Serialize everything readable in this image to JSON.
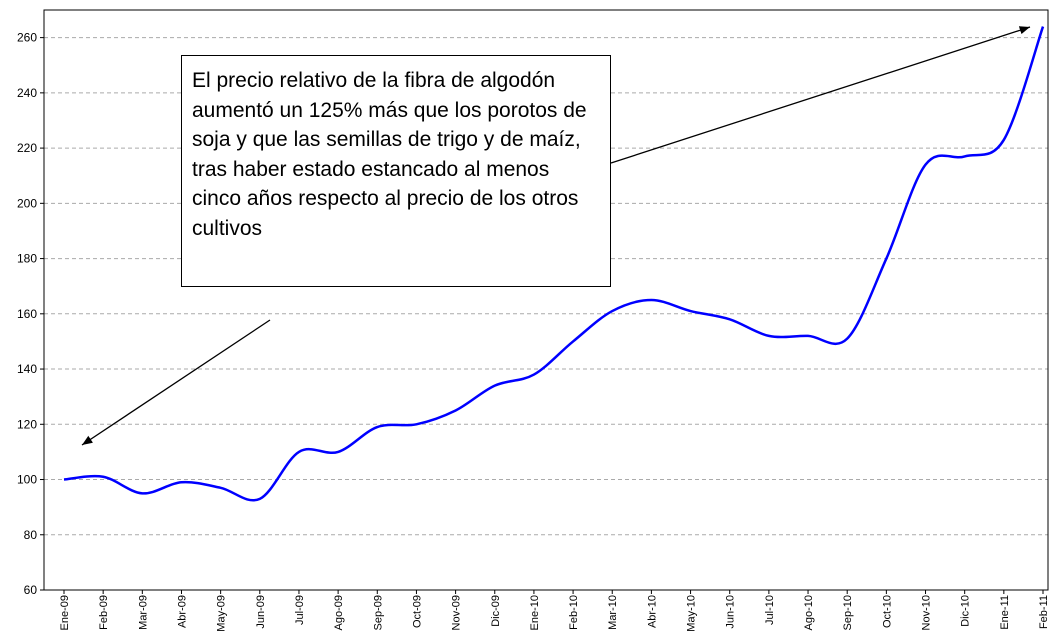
{
  "chart_data": {
    "type": "line",
    "annotation": "El precio relativo de la fibra de algodón aumentó un 125% más que los porotos de soja y que las semillas de trigo y de maíz, tras haber estado estancado al menos cinco años respecto al precio de los otros cultivos",
    "categories": [
      "Ene-09",
      "Feb-09",
      "Mar-09",
      "Abr-09",
      "May-09",
      "Jun-09",
      "Jul-09",
      "Ago-09",
      "Sep-09",
      "Oct-09",
      "Nov-09",
      "Dic-09",
      "Ene-10",
      "Feb-10",
      "Mar-10",
      "Abr-10",
      "May-10",
      "Jun-10",
      "Jul-10",
      "Ago-10",
      "Sep-10",
      "Oct-10",
      "Nov-10",
      "Dic-10",
      "Ene-11",
      "Feb-11"
    ],
    "series": [
      {
        "color": "#0000ff",
        "values": [
          100,
          101,
          95,
          99,
          97,
          93,
          110,
          110,
          119,
          120,
          125,
          134,
          138,
          150,
          161,
          165,
          161,
          158,
          152,
          152,
          151,
          180,
          214,
          217,
          223,
          264
        ]
      }
    ],
    "ylim": [
      60,
      270
    ],
    "yticks": [
      60,
      80,
      100,
      120,
      140,
      160,
      180,
      200,
      220,
      240,
      260
    ],
    "grid": true
  }
}
